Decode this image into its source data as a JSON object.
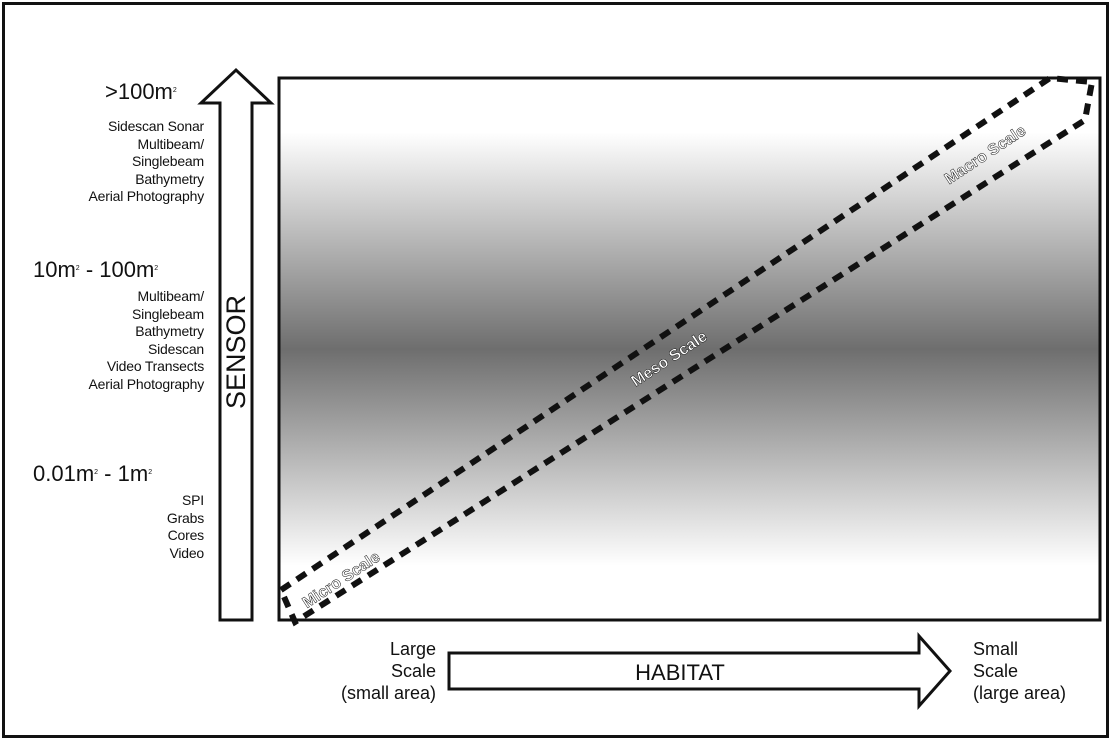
{
  "sensor_axis": {
    "label": "SENSOR"
  },
  "habitat_axis": {
    "label": "HABITAT",
    "left_end": [
      "Large",
      "Scale",
      "(small area)"
    ],
    "right_end": [
      "Small",
      "Scale",
      "(large area)"
    ]
  },
  "scale_groups": [
    {
      "heading": ">100m",
      "heading_sup": "2",
      "sensors": [
        "Sidescan Sonar",
        "Multibeam/",
        "Singlebeam",
        "Bathymetry",
        "Aerial Photography"
      ]
    },
    {
      "heading_a": "10m",
      "heading_a_sup": "2",
      "heading_b": " - 100m",
      "heading_b_sup": "2",
      "sensors": [
        "Multibeam/",
        "Singlebeam",
        "Bathymetry",
        "Sidescan",
        "Video Transects",
        "Aerial Photography"
      ]
    },
    {
      "heading_a": "0.01m",
      "heading_a_sup": "2",
      "heading_b": " - 1m",
      "heading_b_sup": "2",
      "sensors": [
        "SPI",
        "Grabs",
        "Cores",
        "Video"
      ]
    }
  ],
  "band_labels": {
    "micro": "Micro Scale",
    "meso": "Meso Scale",
    "macro": "Macro Scale"
  },
  "colors": {
    "line": "#111111",
    "gradient_light": "#ffffff",
    "gradient_dark": "#6e6e6e",
    "band_text": "#ffffff"
  }
}
